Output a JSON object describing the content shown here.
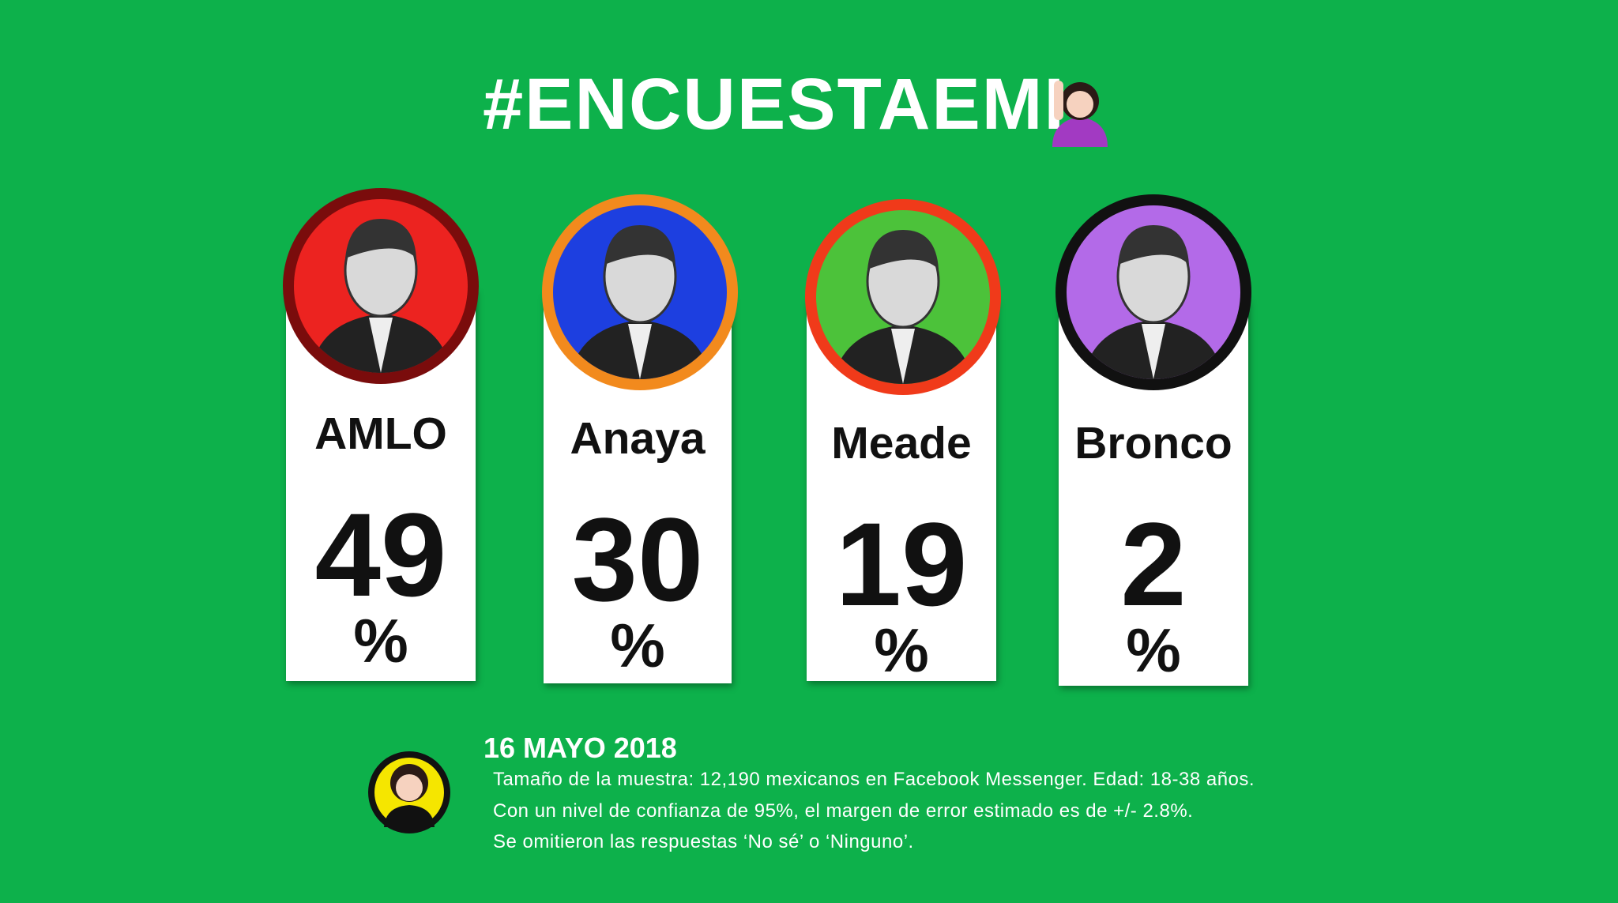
{
  "header": {
    "title": "#ENCUESTAEMI"
  },
  "candidates": [
    {
      "name": "AMLO",
      "value": 49,
      "unit": "%"
    },
    {
      "name": "Anaya",
      "value": 30,
      "unit": "%"
    },
    {
      "name": "Meade",
      "value": 19,
      "unit": "%"
    },
    {
      "name": "Bronco",
      "value": 2,
      "unit": "%"
    }
  ],
  "footer": {
    "date": "16 MAYO 2018",
    "lines": [
      "Tamaño de la muestra: 12,190 mexicanos en Facebook Messenger. Edad: 18-38 años.",
      "Con un nivel de confianza de 95%, el margen de error estimado es de +/- 2.8%.",
      "Se omitieron las respuestas ‘No sé’ o ‘Ninguno’."
    ]
  }
}
